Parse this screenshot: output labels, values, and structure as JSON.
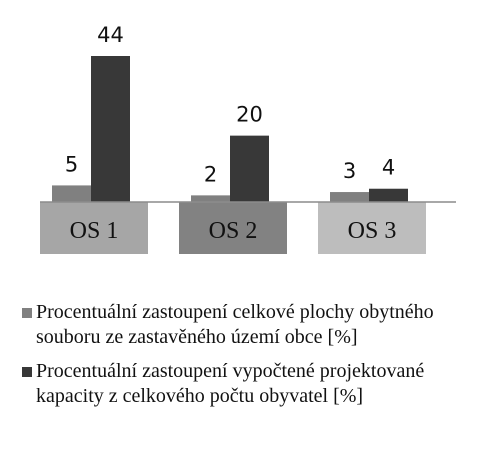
{
  "chart_data": {
    "type": "bar",
    "categories": [
      "OS 1",
      "OS 2",
      "OS 3"
    ],
    "series": [
      {
        "name": "Procentuální zastoupení celkové plochy obytného souboru ze zastavěného území obce [%]",
        "color": "#808080",
        "values": [
          5,
          2,
          3
        ]
      },
      {
        "name": "Procentuální zastoupení vypočtené projektované kapacity z celkového počtu obyvatel [%]",
        "color": "#383838",
        "values": [
          44,
          20,
          4
        ]
      }
    ]
  }
}
